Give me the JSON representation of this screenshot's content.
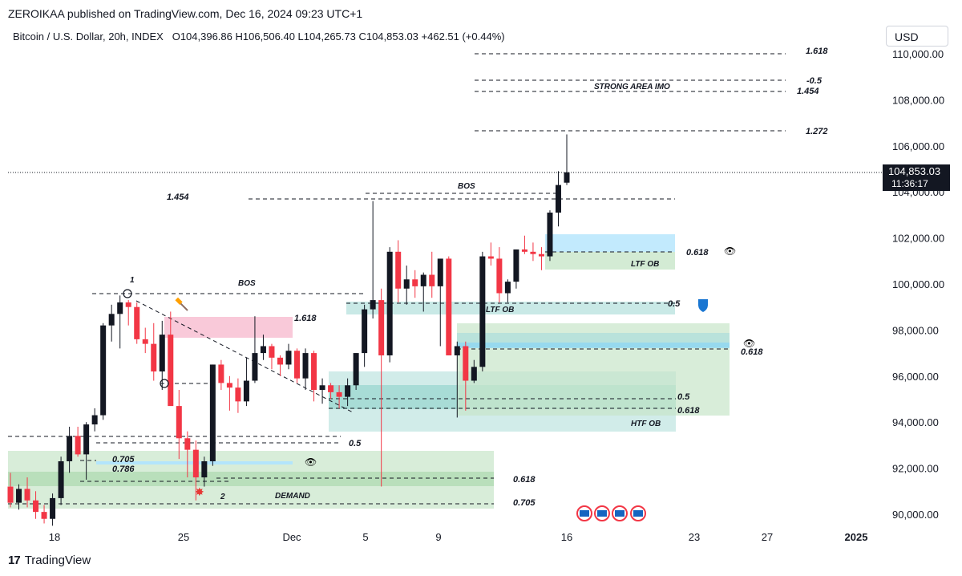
{
  "header": {
    "published": "ZEROIKAA published on TradingView.com, Dec 16, 2024 09:23 UTC+1",
    "symbol": "Bitcoin / U.S. Dollar, 20h, INDEX",
    "ohlc": "O104,396.86  H106,506.40  L104,265.73  C104,853.03  +462.51 (+0.44%)",
    "currency": "USD"
  },
  "footer": {
    "brand": "TradingView",
    "logo_icon": "tradingview-logo-icon"
  },
  "colors": {
    "up_candle": "#131722",
    "down_candle": "#f23645",
    "green_zone": "#c8e6c9",
    "teal_zone": "#b2dfdb",
    "blue_zone": "#b3e5fc",
    "red_zone": "#f8bbd0",
    "grid": "#f0f3fa"
  },
  "chart_data": {
    "type": "candlestick",
    "ylim": [
      89500,
      110800
    ],
    "y_ticks": [
      90000,
      92000,
      94000,
      96000,
      98000,
      100000,
      102000,
      104000,
      106000,
      108000,
      110000
    ],
    "y_tick_labels": [
      "90,000.00",
      "92,000.00",
      "94,000.00",
      "96,000.00",
      "98,000.00",
      "100,000.00",
      "102,000.00",
      "104,000.00",
      "106,000.00",
      "108,000.00",
      "110,000.00"
    ],
    "x_ticks": [
      "18",
      "25",
      "Dec",
      "5",
      "9",
      "16",
      "23",
      "27",
      "2025"
    ],
    "current_price": {
      "label": "104,853.03",
      "countdown": "11:36:17",
      "value": 104853
    },
    "candles": [
      {
        "o": 91.2,
        "h": 91.8,
        "l": 90.3,
        "c": 90.5
      },
      {
        "o": 90.5,
        "h": 91.3,
        "l": 90.2,
        "c": 91.1
      },
      {
        "o": 91.1,
        "h": 91.6,
        "l": 90.3,
        "c": 90.6
      },
      {
        "o": 90.6,
        "h": 91.0,
        "l": 89.8,
        "c": 90.1
      },
      {
        "o": 90.1,
        "h": 90.4,
        "l": 89.6,
        "c": 89.8
      },
      {
        "o": 89.8,
        "h": 90.9,
        "l": 89.5,
        "c": 90.7
      },
      {
        "o": 90.7,
        "h": 92.5,
        "l": 90.4,
        "c": 92.3
      },
      {
        "o": 92.3,
        "h": 93.8,
        "l": 91.8,
        "c": 93.4
      },
      {
        "o": 93.4,
        "h": 93.8,
        "l": 92.5,
        "c": 92.6
      },
      {
        "o": 92.6,
        "h": 94.0,
        "l": 91.5,
        "c": 93.9
      },
      {
        "o": 93.9,
        "h": 94.6,
        "l": 93.6,
        "c": 94.3
      },
      {
        "o": 94.3,
        "h": 98.3,
        "l": 94.1,
        "c": 98.2
      },
      {
        "o": 98.2,
        "h": 99.1,
        "l": 97.5,
        "c": 98.7
      },
      {
        "o": 98.7,
        "h": 99.5,
        "l": 97.2,
        "c": 99.2
      },
      {
        "o": 99.2,
        "h": 99.3,
        "l": 98.2,
        "c": 99.0
      },
      {
        "o": 99.0,
        "h": 99.2,
        "l": 97.4,
        "c": 97.6
      },
      {
        "o": 97.6,
        "h": 98.1,
        "l": 97.0,
        "c": 97.4
      },
      {
        "o": 97.4,
        "h": 98.3,
        "l": 95.8,
        "c": 96.2
      },
      {
        "o": 96.2,
        "h": 98.4,
        "l": 95.4,
        "c": 97.8
      },
      {
        "o": 97.8,
        "h": 98.8,
        "l": 96.2,
        "c": 94.7
      },
      {
        "o": 94.7,
        "h": 95.4,
        "l": 92.4,
        "c": 93.3
      },
      {
        "o": 93.3,
        "h": 93.6,
        "l": 91.6,
        "c": 92.8
      },
      {
        "o": 92.8,
        "h": 93.2,
        "l": 90.6,
        "c": 91.6
      },
      {
        "o": 91.6,
        "h": 92.5,
        "l": 91.2,
        "c": 92.3
      },
      {
        "o": 92.3,
        "h": 96.5,
        "l": 92.1,
        "c": 96.5
      },
      {
        "o": 96.5,
        "h": 96.7,
        "l": 95.4,
        "c": 95.7
      },
      {
        "o": 95.7,
        "h": 96.0,
        "l": 94.5,
        "c": 95.5
      },
      {
        "o": 95.5,
        "h": 95.9,
        "l": 94.4,
        "c": 94.9
      },
      {
        "o": 94.9,
        "h": 96.8,
        "l": 94.7,
        "c": 95.8
      },
      {
        "o": 95.8,
        "h": 98.6,
        "l": 95.7,
        "c": 97.0
      },
      {
        "o": 97.0,
        "h": 97.8,
        "l": 96.7,
        "c": 97.3
      },
      {
        "o": 97.3,
        "h": 97.4,
        "l": 96.3,
        "c": 96.8
      },
      {
        "o": 96.8,
        "h": 96.9,
        "l": 96.0,
        "c": 96.5
      },
      {
        "o": 96.5,
        "h": 97.4,
        "l": 96.3,
        "c": 97.1
      },
      {
        "o": 97.1,
        "h": 97.2,
        "l": 95.7,
        "c": 95.9
      },
      {
        "o": 95.9,
        "h": 97.2,
        "l": 95.4,
        "c": 97.0
      },
      {
        "o": 97.0,
        "h": 97.1,
        "l": 94.9,
        "c": 95.4
      },
      {
        "o": 95.4,
        "h": 95.9,
        "l": 94.8,
        "c": 95.6
      },
      {
        "o": 95.6,
        "h": 95.7,
        "l": 95.0,
        "c": 95.3
      },
      {
        "o": 95.3,
        "h": 95.6,
        "l": 94.6,
        "c": 95.1
      },
      {
        "o": 95.1,
        "h": 95.9,
        "l": 94.7,
        "c": 95.6
      },
      {
        "o": 95.6,
        "h": 97.0,
        "l": 95.4,
        "c": 97.0
      },
      {
        "o": 97.0,
        "h": 99.1,
        "l": 96.4,
        "c": 98.9
      },
      {
        "o": 98.9,
        "h": 103.6,
        "l": 98.5,
        "c": 99.3
      },
      {
        "o": 99.3,
        "h": 99.8,
        "l": 91.2,
        "c": 96.9
      },
      {
        "o": 96.9,
        "h": 101.6,
        "l": 96.6,
        "c": 101.4
      },
      {
        "o": 101.4,
        "h": 101.9,
        "l": 99.2,
        "c": 99.8
      },
      {
        "o": 99.8,
        "h": 100.8,
        "l": 99.1,
        "c": 100.2
      },
      {
        "o": 100.2,
        "h": 100.6,
        "l": 99.4,
        "c": 99.9
      },
      {
        "o": 99.9,
        "h": 100.5,
        "l": 98.8,
        "c": 100.4
      },
      {
        "o": 100.4,
        "h": 101.4,
        "l": 99.4,
        "c": 99.9
      },
      {
        "o": 99.9,
        "h": 100.1,
        "l": 97.3,
        "c": 101.1
      },
      {
        "o": 101.1,
        "h": 101.2,
        "l": 96.9,
        "c": 96.9
      },
      {
        "o": 96.9,
        "h": 97.5,
        "l": 94.2,
        "c": 97.3
      },
      {
        "o": 97.3,
        "h": 97.5,
        "l": 94.5,
        "c": 95.8
      },
      {
        "o": 95.8,
        "h": 96.7,
        "l": 95.7,
        "c": 96.4
      },
      {
        "o": 96.4,
        "h": 101.4,
        "l": 96.2,
        "c": 101.2
      },
      {
        "o": 101.2,
        "h": 101.8,
        "l": 100.8,
        "c": 101.1
      },
      {
        "o": 101.1,
        "h": 101.6,
        "l": 99.2,
        "c": 99.6
      },
      {
        "o": 99.6,
        "h": 100.2,
        "l": 99.2,
        "c": 100.1
      },
      {
        "o": 100.1,
        "h": 101.5,
        "l": 99.8,
        "c": 101.5
      },
      {
        "o": 101.5,
        "h": 102.1,
        "l": 101.3,
        "c": 101.4
      },
      {
        "o": 101.4,
        "h": 101.8,
        "l": 101.0,
        "c": 101.3
      },
      {
        "o": 101.3,
        "h": 101.6,
        "l": 100.6,
        "c": 101.2
      },
      {
        "o": 101.2,
        "h": 103.2,
        "l": 101.0,
        "c": 103.1
      },
      {
        "o": 103.1,
        "h": 104.9,
        "l": 102.5,
        "c": 104.3
      },
      {
        "o": 104.4,
        "h": 106.5,
        "l": 104.3,
        "c": 104.85
      }
    ]
  },
  "annotations": {
    "fib_1618_top": "1.618",
    "fib_neg05": "-0.5",
    "strong_area": "STRONG AREA IMO",
    "fib_1454_top": "1.454",
    "fib_1272": "1.272",
    "bos_upper": "BOS",
    "fib_1454_left": "1.454",
    "fib_0618_ltf": "0.618",
    "ltf_ob_upper": "LTF OB",
    "bos_left": "BOS",
    "label_1": "1",
    "fib_1618_mid": "1.618",
    "fib_05_mid": "0.5",
    "ltf_ob_mid": "LTF OB",
    "fib_0618_htf": "0.618",
    "fib_05_htf": "0.5",
    "fib_0618_htf2": "0.618",
    "htf_ob": "HTF OB",
    "fib_05_low": "0.5",
    "fib_0705_left": "0.705",
    "fib_0786_left": "0.786",
    "fib_0618_demand": "0.618",
    "label_2": "2",
    "demand": "DEMAND",
    "fib_0705_demand": "0.705"
  }
}
